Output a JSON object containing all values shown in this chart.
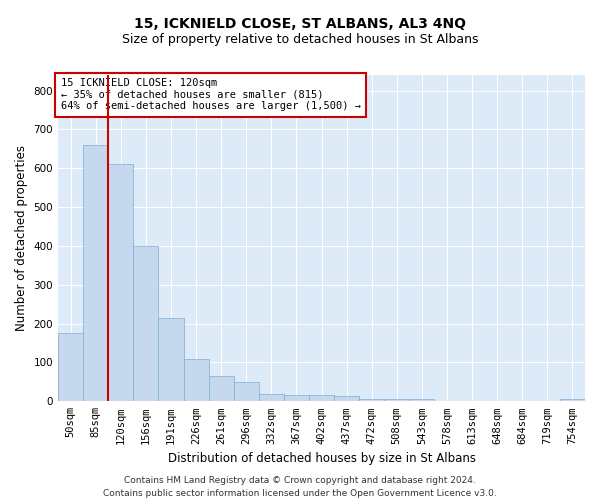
{
  "title": "15, ICKNIELD CLOSE, ST ALBANS, AL3 4NQ",
  "subtitle": "Size of property relative to detached houses in St Albans",
  "xlabel": "Distribution of detached houses by size in St Albans",
  "ylabel": "Number of detached properties",
  "bar_color": "#c5d8ee",
  "bar_edge_color": "#7aaed4",
  "bg_color": "#ddeaf7",
  "grid_color": "#ffffff",
  "vline_color": "#cc0000",
  "annotation_text": "15 ICKNIELD CLOSE: 120sqm\n← 35% of detached houses are smaller (815)\n64% of semi-detached houses are larger (1,500) →",
  "annotation_box_color": "#ffffff",
  "annotation_box_edge": "#cc0000",
  "bins": [
    "50sqm",
    "85sqm",
    "120sqm",
    "156sqm",
    "191sqm",
    "226sqm",
    "261sqm",
    "296sqm",
    "332sqm",
    "367sqm",
    "402sqm",
    "437sqm",
    "472sqm",
    "508sqm",
    "543sqm",
    "578sqm",
    "613sqm",
    "648sqm",
    "684sqm",
    "719sqm",
    "754sqm"
  ],
  "values": [
    175,
    660,
    610,
    400,
    215,
    110,
    65,
    50,
    20,
    17,
    15,
    13,
    7,
    5,
    5,
    0,
    0,
    0,
    0,
    0,
    5
  ],
  "ylim": [
    0,
    840
  ],
  "yticks": [
    0,
    100,
    200,
    300,
    400,
    500,
    600,
    700,
    800
  ],
  "footer": "Contains HM Land Registry data © Crown copyright and database right 2024.\nContains public sector information licensed under the Open Government Licence v3.0.",
  "title_fontsize": 10,
  "subtitle_fontsize": 9,
  "axis_label_fontsize": 8.5,
  "tick_fontsize": 7.5,
  "footer_fontsize": 6.5,
  "annotation_fontsize": 7.5
}
